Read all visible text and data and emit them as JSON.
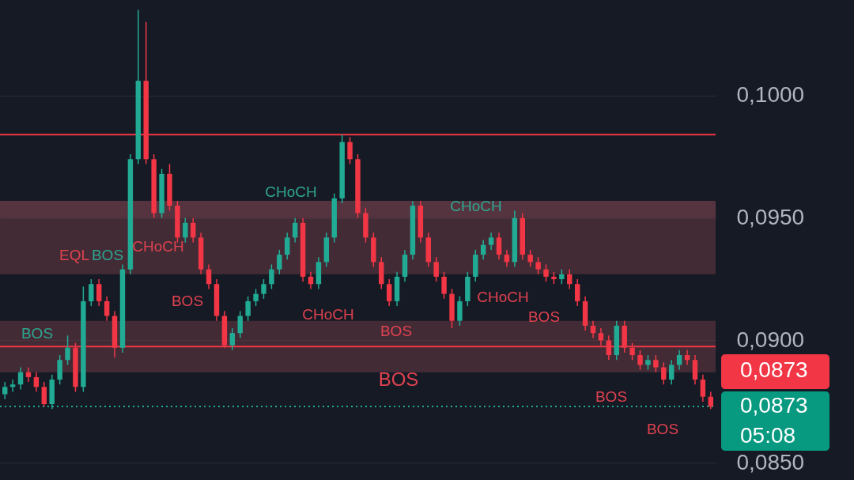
{
  "chart_data": {
    "type": "candlestick",
    "categories": [
      null,
      null,
      null,
      null,
      null,
      null,
      null,
      null,
      null,
      null,
      null,
      null,
      null,
      null,
      null,
      null,
      null,
      null,
      null,
      null,
      null,
      null,
      null,
      null,
      null,
      null,
      null,
      null,
      null,
      null,
      null,
      null,
      null,
      null,
      null,
      null,
      null,
      null,
      null,
      null,
      null,
      null,
      null,
      null,
      null,
      null,
      null,
      null,
      null,
      null,
      null,
      null,
      null,
      null,
      null,
      null,
      null,
      null,
      null,
      null,
      null,
      null,
      null,
      null,
      null,
      null,
      null,
      null,
      null,
      null,
      null,
      null,
      null,
      null,
      null,
      null,
      null,
      null,
      null,
      null,
      null,
      null,
      null,
      null,
      null,
      null,
      null,
      null,
      null,
      null,
      null
    ],
    "ohlc": [
      [
        0.0878,
        0.0883,
        0.0876,
        0.0881
      ],
      [
        0.0881,
        0.0884,
        0.0879,
        0.0882
      ],
      [
        0.0882,
        0.0889,
        0.088,
        0.0887
      ],
      [
        0.0887,
        0.0889,
        0.0883,
        0.0885
      ],
      [
        0.0885,
        0.0887,
        0.0879,
        0.0881
      ],
      [
        0.0881,
        0.0883,
        0.0873,
        0.0874
      ],
      [
        0.0874,
        0.0886,
        0.0872,
        0.0884
      ],
      [
        0.0884,
        0.0894,
        0.0882,
        0.0892
      ],
      [
        0.0892,
        0.0902,
        0.089,
        0.0897
      ],
      [
        0.0897,
        0.0899,
        0.0879,
        0.0881
      ],
      [
        0.0881,
        0.0922,
        0.0879,
        0.0916
      ],
      [
        0.0916,
        0.0925,
        0.0914,
        0.0923
      ],
      [
        0.0923,
        0.0925,
        0.0914,
        0.0916
      ],
      [
        0.0916,
        0.0918,
        0.0908,
        0.091
      ],
      [
        0.091,
        0.0912,
        0.0893,
        0.0897
      ],
      [
        0.0897,
        0.0931,
        0.0895,
        0.0929
      ],
      [
        0.0929,
        0.0976,
        0.0927,
        0.0974
      ],
      [
        0.0974,
        0.1035,
        0.0972,
        0.1006
      ],
      [
        0.1006,
        0.103,
        0.0972,
        0.0974
      ],
      [
        0.0974,
        0.0976,
        0.095,
        0.0952
      ],
      [
        0.0952,
        0.097,
        0.095,
        0.0968
      ],
      [
        0.0968,
        0.0972,
        0.0953,
        0.0955
      ],
      [
        0.0955,
        0.0957,
        0.094,
        0.0942
      ],
      [
        0.0942,
        0.095,
        0.094,
        0.0948
      ],
      [
        0.0948,
        0.095,
        0.094,
        0.0942
      ],
      [
        0.0942,
        0.0944,
        0.0927,
        0.0929
      ],
      [
        0.0929,
        0.0931,
        0.0921,
        0.0923
      ],
      [
        0.0923,
        0.0925,
        0.0908,
        0.091
      ],
      [
        0.091,
        0.0912,
        0.0897,
        0.0898
      ],
      [
        0.0898,
        0.0905,
        0.0896,
        0.0903
      ],
      [
        0.0903,
        0.0912,
        0.0901,
        0.091
      ],
      [
        0.091,
        0.0918,
        0.0908,
        0.0916
      ],
      [
        0.0916,
        0.0921,
        0.0914,
        0.0919
      ],
      [
        0.0919,
        0.0925,
        0.0917,
        0.0923
      ],
      [
        0.0923,
        0.0931,
        0.0921,
        0.0929
      ],
      [
        0.0929,
        0.0937,
        0.0927,
        0.0935
      ],
      [
        0.0935,
        0.0944,
        0.0933,
        0.0942
      ],
      [
        0.0942,
        0.095,
        0.094,
        0.0948
      ],
      [
        0.0948,
        0.095,
        0.0924,
        0.0926
      ],
      [
        0.0926,
        0.0928,
        0.0921,
        0.0923
      ],
      [
        0.0923,
        0.0934,
        0.0921,
        0.0932
      ],
      [
        0.0932,
        0.0944,
        0.093,
        0.0942
      ],
      [
        0.0942,
        0.096,
        0.094,
        0.0958
      ],
      [
        0.0958,
        0.0984,
        0.0956,
        0.0981
      ],
      [
        0.0981,
        0.0983,
        0.0972,
        0.0974
      ],
      [
        0.0974,
        0.0976,
        0.095,
        0.0952
      ],
      [
        0.0952,
        0.0954,
        0.094,
        0.0942
      ],
      [
        0.0942,
        0.0944,
        0.093,
        0.0932
      ],
      [
        0.0932,
        0.0934,
        0.0921,
        0.0923
      ],
      [
        0.0923,
        0.0925,
        0.0914,
        0.0916
      ],
      [
        0.0916,
        0.0928,
        0.0914,
        0.0926
      ],
      [
        0.0926,
        0.0937,
        0.0924,
        0.0935
      ],
      [
        0.0935,
        0.0957,
        0.0933,
        0.0955
      ],
      [
        0.0955,
        0.0957,
        0.094,
        0.0942
      ],
      [
        0.0942,
        0.0944,
        0.093,
        0.0932
      ],
      [
        0.0932,
        0.0934,
        0.0924,
        0.0926
      ],
      [
        0.0926,
        0.0928,
        0.0917,
        0.0919
      ],
      [
        0.0919,
        0.0921,
        0.0905,
        0.0908
      ],
      [
        0.0908,
        0.0918,
        0.0906,
        0.0916
      ],
      [
        0.0916,
        0.0928,
        0.0914,
        0.0926
      ],
      [
        0.0926,
        0.0937,
        0.0924,
        0.0935
      ],
      [
        0.0935,
        0.0941,
        0.0933,
        0.0939
      ],
      [
        0.0939,
        0.0944,
        0.0937,
        0.0942
      ],
      [
        0.0942,
        0.0944,
        0.0933,
        0.0935
      ],
      [
        0.0935,
        0.0937,
        0.093,
        0.0932
      ],
      [
        0.0932,
        0.0953,
        0.093,
        0.095
      ],
      [
        0.095,
        0.0952,
        0.0933,
        0.0935
      ],
      [
        0.0935,
        0.0937,
        0.093,
        0.0932
      ],
      [
        0.0932,
        0.0934,
        0.0927,
        0.0929
      ],
      [
        0.0929,
        0.0931,
        0.0924,
        0.0926
      ],
      [
        0.0926,
        0.0928,
        0.0923,
        0.0925
      ],
      [
        0.0925,
        0.0929,
        0.0923,
        0.0927
      ],
      [
        0.0927,
        0.0929,
        0.0921,
        0.0923
      ],
      [
        0.0923,
        0.0925,
        0.0914,
        0.0916
      ],
      [
        0.0916,
        0.0918,
        0.0904,
        0.0906
      ],
      [
        0.0906,
        0.0908,
        0.0901,
        0.0903
      ],
      [
        0.0903,
        0.0905,
        0.0898,
        0.09
      ],
      [
        0.09,
        0.0902,
        0.0892,
        0.0894
      ],
      [
        0.0894,
        0.0908,
        0.0892,
        0.0906
      ],
      [
        0.0906,
        0.0908,
        0.0895,
        0.0897
      ],
      [
        0.0897,
        0.0899,
        0.0892,
        0.0894
      ],
      [
        0.0894,
        0.0896,
        0.0888,
        0.089
      ],
      [
        0.089,
        0.0894,
        0.0888,
        0.0892
      ],
      [
        0.0892,
        0.0894,
        0.0887,
        0.0889
      ],
      [
        0.0889,
        0.0891,
        0.0882,
        0.0884
      ],
      [
        0.0884,
        0.0892,
        0.0882,
        0.089
      ],
      [
        0.089,
        0.0896,
        0.0888,
        0.0894
      ],
      [
        0.0894,
        0.0896,
        0.089,
        0.0892
      ],
      [
        0.0892,
        0.0894,
        0.0882,
        0.0884
      ],
      [
        0.0884,
        0.0886,
        0.0875,
        0.0877
      ],
      [
        0.0877,
        0.0879,
        0.0872,
        0.0873
      ]
    ],
    "ylim": [
      0.0843,
      0.1039
    ],
    "yticks": [
      {
        "value": 0.085,
        "label": "0,0850"
      },
      {
        "value": 0.09,
        "label": "0,0900"
      },
      {
        "value": 0.095,
        "label": "0,0950"
      },
      {
        "value": 0.1,
        "label": "0,1000"
      }
    ],
    "grid": "y",
    "tick_labels": "y",
    "ref_lines": [
      {
        "axis": "y",
        "value": 0.0984,
        "color": "#f23645",
        "line_style": "solid"
      },
      {
        "axis": "y",
        "value": 0.08975,
        "color": "#f23645",
        "line_style": "solid"
      },
      {
        "axis": "y",
        "value": 0.0873,
        "color": "#22ab94",
        "line_style": "dotted"
      }
    ],
    "bands": [
      {
        "axis": "y",
        "from": 0.095,
        "to": 0.0957,
        "color": "#8a4a55"
      },
      {
        "axis": "y",
        "from": 0.0927,
        "to": 0.095,
        "color": "#6a3a45"
      },
      {
        "axis": "y",
        "from": 0.0887,
        "to": 0.0908,
        "color": "#6a3a45"
      }
    ],
    "annotations": [
      "BOS",
      "EQL",
      "BOS",
      "CHoCH",
      "BOS",
      "CHoCH",
      "CHoCH",
      "BOS",
      "BOS",
      "CHoCH",
      "CHoCH",
      "BOS",
      "BOS",
      "BOS",
      "0,0873",
      "0,0873",
      "05:08"
    ]
  }
}
